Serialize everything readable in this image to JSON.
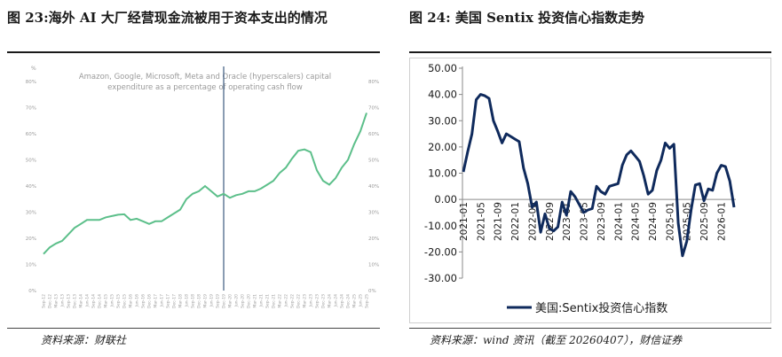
{
  "left": {
    "heading": "图 23:海外 AI 大厂经营现金流被用于资本支出的情况",
    "chart_title_line1": "Amazon, Google, Microsoft, Meta and Oracle (hyperscalers) capital",
    "chart_title_line2": "expenditure as a percentage of operating cash flow",
    "source": "资料来源：财联社"
  },
  "right": {
    "heading": "图 24:  美国 Sentix 投资信心指数走势",
    "source": "资料来源：wind 资讯（截至 20260407），财信证券"
  },
  "chart_data": [
    {
      "type": "line",
      "title": "Amazon, Google, Microsoft, Meta and Oracle (hyperscalers) capital expenditure as a percentage of operating cash flow",
      "ylabel": "%",
      "ylim": [
        0,
        80
      ],
      "yticks": [
        "0%",
        "10%",
        "20%",
        "30%",
        "40%",
        "50%",
        "60%",
        "70%",
        "80%"
      ],
      "xticks": [
        "Sep-12",
        "Dec-12",
        "Mar-13",
        "Jun-13",
        "Sep-13",
        "Dec-13",
        "Mar-14",
        "Jun-14",
        "Sep-14",
        "Dec-14",
        "Mar-15",
        "Jun-15",
        "Sep-15",
        "Dec-15",
        "Mar-16",
        "Jun-16",
        "Sep-16",
        "Dec-16",
        "Mar-17",
        "Jun-17",
        "Sep-17",
        "Dec-17",
        "Mar-18",
        "Jun-18",
        "Sep-18",
        "Dec-18",
        "Mar-19",
        "Jun-19",
        "Sep-19",
        "Dec-19",
        "Mar-20",
        "Jun-20",
        "Sep-20",
        "Dec-20",
        "Mar-21",
        "Jun-21",
        "Sep-21",
        "Dec-21",
        "Mar-22",
        "Jun-22",
        "Sep-22",
        "Dec-22",
        "Mar-23",
        "Jun-23",
        "Sep-23",
        "Dec-23",
        "Mar-24",
        "Jun-24",
        "Sep-24",
        "Dec-24",
        "Mar-25",
        "Jun-25",
        "Sep-25"
      ],
      "values": [
        14,
        16.5,
        18,
        19,
        21.5,
        24,
        25.5,
        27,
        27,
        27,
        28,
        28.5,
        29,
        29.2,
        27,
        27.5,
        26.5,
        25.5,
        26.5,
        26.5,
        28,
        29.5,
        31,
        35,
        37,
        38,
        40,
        38,
        36,
        37,
        35.5,
        36.5,
        37,
        38,
        38,
        39,
        40.5,
        42,
        45,
        47,
        50.5,
        53.5,
        54,
        53,
        46,
        42,
        40.5,
        43,
        47,
        50,
        56,
        61,
        68
      ],
      "vertical_marker": "Dec-19",
      "grid": false
    },
    {
      "type": "line",
      "ylim": [
        -30,
        50
      ],
      "yticks": [
        "50.00",
        "40.00",
        "30.00",
        "20.00",
        "10.00",
        "0.00",
        "-10.00",
        "-20.00",
        "-30.00"
      ],
      "xticks": [
        "2021-01",
        "2021-05",
        "2021-09",
        "2022-01",
        "2022-05",
        "2022-09",
        "2023-01",
        "2023-05",
        "2023-09",
        "2024-01",
        "2024-05",
        "2024-09",
        "2025-01",
        "2025-05",
        "2025-09",
        "2026-01"
      ],
      "series": [
        {
          "name": "美国:Sentix投资信心指数",
          "x": [
            "2021-01",
            "2021-02",
            "2021-03",
            "2021-04",
            "2021-05",
            "2021-06",
            "2021-07",
            "2021-08",
            "2021-09",
            "2021-10",
            "2021-11",
            "2021-12",
            "2022-01",
            "2022-02",
            "2022-03",
            "2022-04",
            "2022-05",
            "2022-06",
            "2022-07",
            "2022-08",
            "2022-09",
            "2022-10",
            "2022-11",
            "2022-12",
            "2023-01",
            "2023-02",
            "2023-03",
            "2023-04",
            "2023-05",
            "2023-06",
            "2023-07",
            "2023-08",
            "2023-09",
            "2023-10",
            "2023-11",
            "2023-12",
            "2024-01",
            "2024-02",
            "2024-03",
            "2024-04",
            "2024-05",
            "2024-06",
            "2024-07",
            "2024-08",
            "2024-09",
            "2024-10",
            "2024-11",
            "2024-12",
            "2025-01",
            "2025-02",
            "2025-03",
            "2025-04",
            "2025-05",
            "2025-06",
            "2025-07",
            "2025-08",
            "2025-09",
            "2025-10",
            "2025-11",
            "2025-12",
            "2026-01",
            "2026-02",
            "2026-03",
            "2026-04"
          ],
          "values": [
            10.5,
            18,
            25,
            38,
            40,
            39.5,
            38.5,
            30,
            26,
            21.5,
            25,
            24,
            23,
            22,
            12,
            6,
            -3,
            -1,
            -12.5,
            -5.5,
            -11,
            -12,
            -10.5,
            -1,
            -6,
            3,
            1,
            -2,
            -5,
            -4,
            -3.5,
            5,
            3,
            2,
            5,
            5.5,
            6,
            13,
            17,
            18.5,
            16.5,
            14.5,
            9,
            2,
            3.5,
            11,
            15,
            21.5,
            19.5,
            21,
            -9,
            -21.5,
            -16,
            -4,
            5.5,
            6,
            -0.5,
            4,
            3.5,
            10,
            13,
            12.5,
            7,
            -3
          ]
        }
      ],
      "grid": false,
      "legend": "bottom"
    }
  ]
}
